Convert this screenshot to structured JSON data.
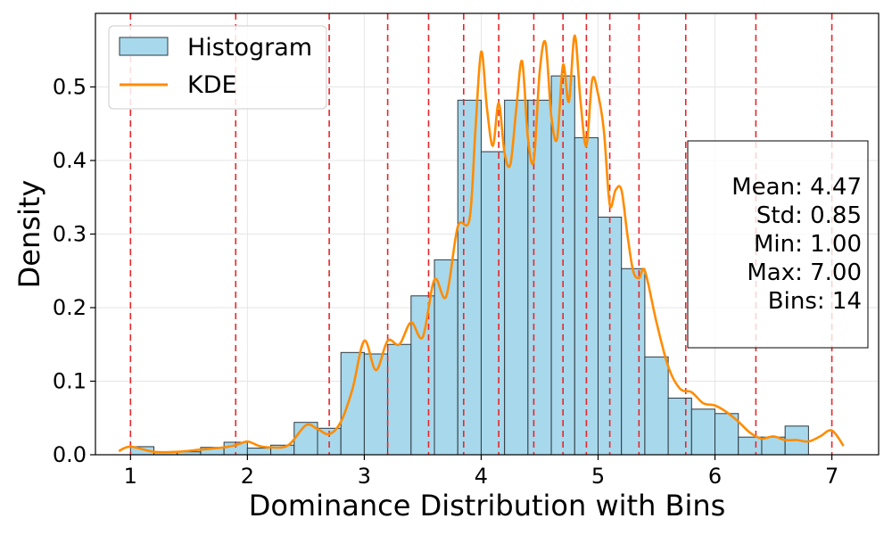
{
  "chart_data": {
    "type": "histogram",
    "xlabel": "Dominance Distribution with Bins",
    "ylabel": "Density",
    "xlim": [
      0.7,
      7.4
    ],
    "ylim": [
      0,
      0.6
    ],
    "x_ticks": [
      1,
      2,
      3,
      4,
      5,
      6,
      7
    ],
    "x_tick_labels": [
      "1",
      "2",
      "3",
      "4",
      "5",
      "6",
      "7"
    ],
    "y_ticks": [
      0.0,
      0.1,
      0.2,
      0.3,
      0.4,
      0.5
    ],
    "y_tick_labels": [
      "0.0",
      "0.1",
      "0.2",
      "0.3",
      "0.4",
      "0.5"
    ],
    "grid": true,
    "histogram": {
      "name": "Histogram",
      "bin_edges": [
        1.0,
        1.2,
        1.4,
        1.6,
        1.8,
        2.0,
        2.2,
        2.4,
        2.6,
        2.8,
        3.0,
        3.2,
        3.4,
        3.6,
        3.8,
        4.0,
        4.2,
        4.4,
        4.6,
        4.8,
        5.0,
        5.2,
        5.4,
        5.6,
        5.8,
        6.0,
        6.2,
        6.4,
        6.6,
        6.8,
        7.0
      ],
      "densities": [
        0.011,
        0.003,
        0.004,
        0.01,
        0.017,
        0.009,
        0.013,
        0.044,
        0.036,
        0.139,
        0.137,
        0.15,
        0.216,
        0.265,
        0.482,
        0.412,
        0.482,
        0.482,
        0.515,
        0.431,
        0.323,
        0.253,
        0.133,
        0.077,
        0.062,
        0.056,
        0.024,
        0.024,
        0.039,
        0.0
      ],
      "fill_color": "#a8d8ec",
      "edge_color": "#2e3a40"
    },
    "kde": {
      "name": "KDE",
      "color": "#ff8c00",
      "x": [
        0.9,
        1.0,
        1.2,
        1.4,
        1.6,
        1.8,
        1.9,
        2.0,
        2.1,
        2.2,
        2.35,
        2.5,
        2.6,
        2.7,
        2.8,
        2.9,
        3.0,
        3.1,
        3.2,
        3.3,
        3.4,
        3.5,
        3.6,
        3.7,
        3.8,
        3.9,
        3.95,
        4.0,
        4.05,
        4.1,
        4.15,
        4.2,
        4.25,
        4.3,
        4.35,
        4.4,
        4.45,
        4.5,
        4.55,
        4.6,
        4.65,
        4.7,
        4.75,
        4.8,
        4.85,
        4.9,
        4.95,
        5.0,
        5.05,
        5.1,
        5.15,
        5.2,
        5.25,
        5.3,
        5.35,
        5.4,
        5.5,
        5.6,
        5.7,
        5.8,
        5.9,
        6.0,
        6.1,
        6.2,
        6.3,
        6.4,
        6.5,
        6.6,
        6.7,
        6.8,
        6.9,
        7.0,
        7.1
      ],
      "y": [
        0.005,
        0.011,
        0.004,
        0.004,
        0.007,
        0.01,
        0.013,
        0.018,
        0.012,
        0.01,
        0.013,
        0.04,
        0.035,
        0.028,
        0.045,
        0.09,
        0.155,
        0.115,
        0.155,
        0.15,
        0.18,
        0.16,
        0.238,
        0.215,
        0.31,
        0.32,
        0.44,
        0.548,
        0.47,
        0.42,
        0.478,
        0.41,
        0.395,
        0.47,
        0.535,
        0.43,
        0.4,
        0.52,
        0.56,
        0.46,
        0.43,
        0.53,
        0.48,
        0.57,
        0.48,
        0.42,
        0.51,
        0.49,
        0.44,
        0.34,
        0.36,
        0.36,
        0.3,
        0.25,
        0.24,
        0.25,
        0.18,
        0.12,
        0.09,
        0.085,
        0.07,
        0.067,
        0.058,
        0.045,
        0.03,
        0.022,
        0.025,
        0.02,
        0.02,
        0.018,
        0.025,
        0.033,
        0.012
      ]
    },
    "bin_edge_lines": {
      "color": "#e8262a",
      "x": [
        1.0,
        1.9,
        2.7,
        3.2,
        3.55,
        3.85,
        4.15,
        4.45,
        4.7,
        4.9,
        5.1,
        5.35,
        5.75,
        6.35,
        7.0
      ]
    },
    "legend": {
      "position": "upper-left",
      "entries": [
        "Histogram",
        "KDE"
      ]
    },
    "stats_box": {
      "position": "right",
      "lines": [
        "Mean: 4.47",
        "Std: 0.85",
        "Min: 1.00",
        "Max: 7.00",
        "Bins: 14"
      ]
    }
  }
}
